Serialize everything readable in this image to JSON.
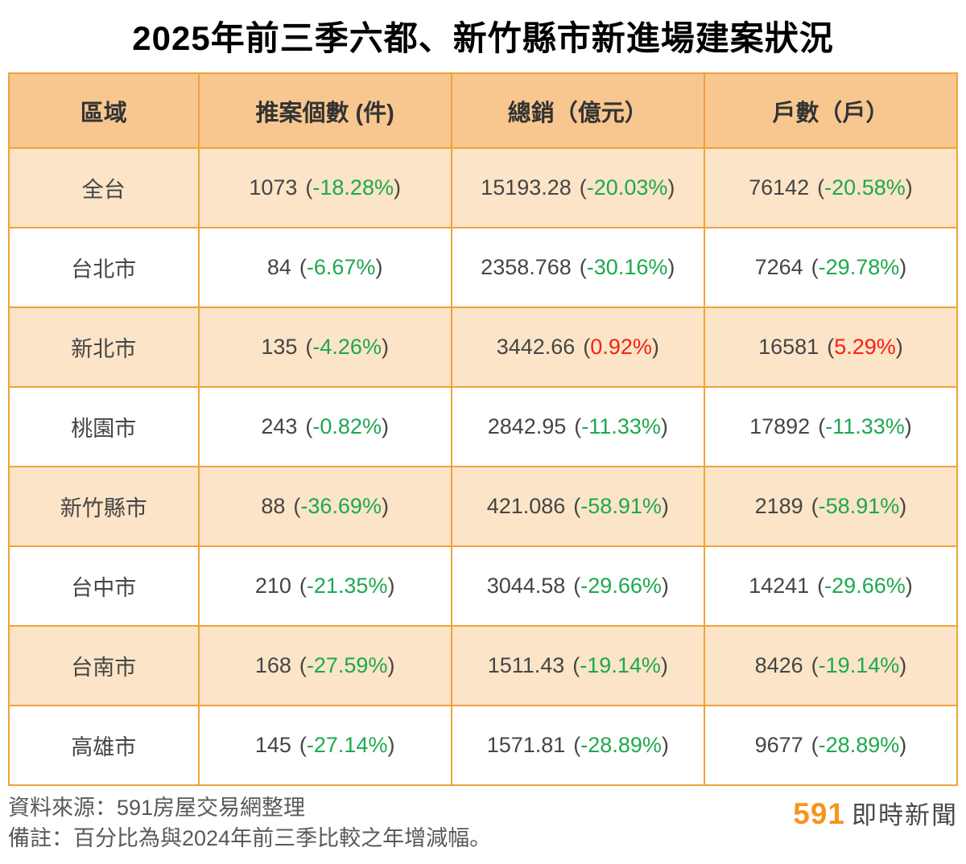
{
  "title": "2025年前三季六都、新竹縣市新進場建案狀況",
  "colors": {
    "border": "#F2A139",
    "header_bg": "#F8C78F",
    "stripe_bg": "#FBE4C7",
    "text_dark": "#454545",
    "pct_negative_green": "#1CA94E",
    "pct_positive_red": "#FA1E10",
    "footer_gray": "#595959",
    "logo_orange": "#F7941D"
  },
  "table": {
    "headers": [
      "區域",
      "推案個數 (件)",
      "總銷（億元）",
      "戶數（戶）"
    ],
    "format": {
      "paren_open": "(",
      "paren_close": ")"
    },
    "rows": [
      {
        "region": "全台",
        "cells": [
          {
            "value": "1073",
            "pct": "-18.28%",
            "color": "green"
          },
          {
            "value": "15193.28",
            "pct": "-20.03%",
            "color": "green"
          },
          {
            "value": "76142",
            "pct": "-20.58%",
            "color": "green"
          }
        ]
      },
      {
        "region": "台北市",
        "cells": [
          {
            "value": "84",
            "pct": "-6.67%",
            "color": "green"
          },
          {
            "value": "2358.768",
            "pct": "-30.16%",
            "color": "green"
          },
          {
            "value": "7264",
            "pct": "-29.78%",
            "color": "green"
          }
        ]
      },
      {
        "region": "新北市",
        "cells": [
          {
            "value": "135",
            "pct": "-4.26%",
            "color": "green"
          },
          {
            "value": "3442.66",
            "pct": "0.92%",
            "color": "red"
          },
          {
            "value": "16581",
            "pct": "5.29%",
            "color": "red"
          }
        ]
      },
      {
        "region": "桃園市",
        "cells": [
          {
            "value": "243",
            "pct": "-0.82%",
            "color": "green"
          },
          {
            "value": "2842.95",
            "pct": "-11.33%",
            "color": "green"
          },
          {
            "value": "17892",
            "pct": "-11.33%",
            "color": "green"
          }
        ]
      },
      {
        "region": "新竹縣市",
        "cells": [
          {
            "value": "88",
            "pct": "-36.69%",
            "color": "green"
          },
          {
            "value": "421.086",
            "pct": "-58.91%",
            "color": "green"
          },
          {
            "value": "2189",
            "pct": "-58.91%",
            "color": "green"
          }
        ]
      },
      {
        "region": "台中市",
        "cells": [
          {
            "value": "210",
            "pct": "-21.35%",
            "color": "green"
          },
          {
            "value": "3044.58",
            "pct": "-29.66%",
            "color": "green"
          },
          {
            "value": "14241",
            "pct": "-29.66%",
            "color": "green"
          }
        ]
      },
      {
        "region": "台南市",
        "cells": [
          {
            "value": "168",
            "pct": "-27.59%",
            "color": "green"
          },
          {
            "value": "1511.43",
            "pct": "-19.14%",
            "color": "green"
          },
          {
            "value": "8426",
            "pct": "-19.14%",
            "color": "green"
          }
        ]
      },
      {
        "region": "高雄市",
        "cells": [
          {
            "value": "145",
            "pct": "-27.14%",
            "color": "green"
          },
          {
            "value": "1571.81",
            "pct": "-28.89%",
            "color": "green"
          },
          {
            "value": "9677",
            "pct": "-28.89%",
            "color": "green"
          }
        ]
      }
    ]
  },
  "footer": {
    "source": "資料來源：591房屋交易網整理",
    "note": "備註：百分比為與2024年前三季比較之年增減幅。",
    "logo": {
      "brand": "591",
      "text": "即時新聞"
    }
  },
  "chart_data": {
    "type": "table",
    "title": "2025年前三季六都、新竹縣市新進場建案狀況",
    "columns": [
      "區域",
      "推案個數 (件)",
      "總銷（億元）",
      "戶數（戶）"
    ],
    "note": "百分比為與2024年前三季比較之年增減幅",
    "source": "591房屋交易網整理",
    "rows": [
      {
        "region": "全台",
        "projects": 1073,
        "projects_yoy_pct": -18.28,
        "sales_100m": 15193.28,
        "sales_yoy_pct": -20.03,
        "units": 76142,
        "units_yoy_pct": -20.58
      },
      {
        "region": "台北市",
        "projects": 84,
        "projects_yoy_pct": -6.67,
        "sales_100m": 2358.768,
        "sales_yoy_pct": -30.16,
        "units": 7264,
        "units_yoy_pct": -29.78
      },
      {
        "region": "新北市",
        "projects": 135,
        "projects_yoy_pct": -4.26,
        "sales_100m": 3442.66,
        "sales_yoy_pct": 0.92,
        "units": 16581,
        "units_yoy_pct": 5.29
      },
      {
        "region": "桃園市",
        "projects": 243,
        "projects_yoy_pct": -0.82,
        "sales_100m": 2842.95,
        "sales_yoy_pct": -11.33,
        "units": 17892,
        "units_yoy_pct": -11.33
      },
      {
        "region": "新竹縣市",
        "projects": 88,
        "projects_yoy_pct": -36.69,
        "sales_100m": 421.086,
        "sales_yoy_pct": -58.91,
        "units": 2189,
        "units_yoy_pct": -58.91
      },
      {
        "region": "台中市",
        "projects": 210,
        "projects_yoy_pct": -21.35,
        "sales_100m": 3044.58,
        "sales_yoy_pct": -29.66,
        "units": 14241,
        "units_yoy_pct": -29.66
      },
      {
        "region": "台南市",
        "projects": 168,
        "projects_yoy_pct": -27.59,
        "sales_100m": 1511.43,
        "sales_yoy_pct": -19.14,
        "units": 8426,
        "units_yoy_pct": -19.14
      },
      {
        "region": "高雄市",
        "projects": 145,
        "projects_yoy_pct": -27.14,
        "sales_100m": 1571.81,
        "sales_yoy_pct": -28.89,
        "units": 9677,
        "units_yoy_pct": -28.89
      }
    ]
  }
}
